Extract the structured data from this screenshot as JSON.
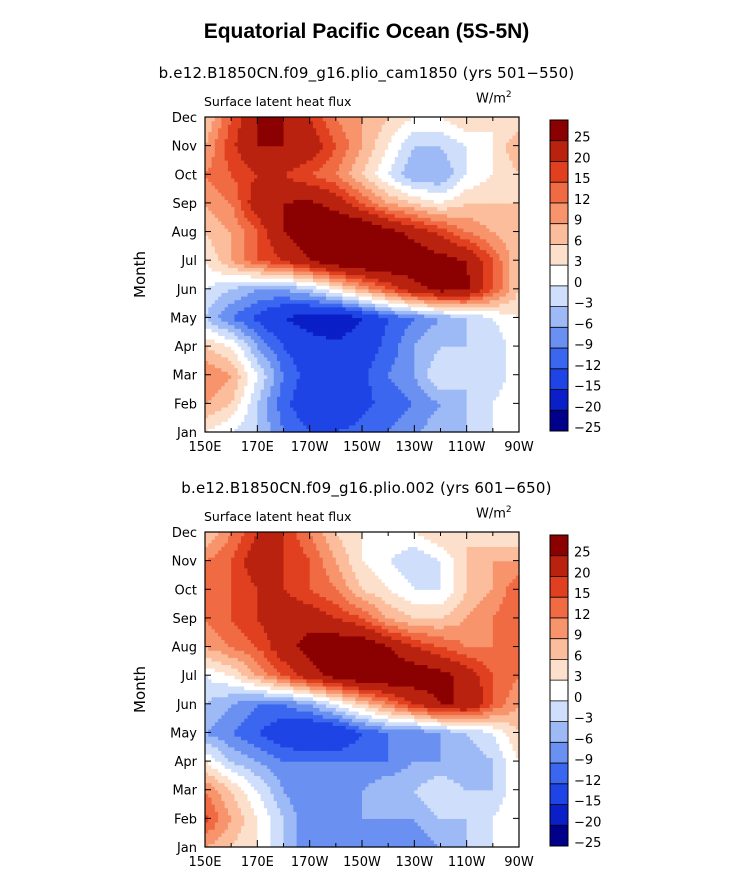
{
  "title": "Equatorial Pacific Ocean (5S-5N)",
  "panels": [
    {
      "subtitle": "b.e12.B1850CN.f09_g16.plio_cam1850 (yrs 501−550)",
      "left_label": "Surface latent heat flux",
      "units": "W/m",
      "units_sup": "2"
    },
    {
      "subtitle": "b.e12.B1850CN.f09_g16.plio.002 (yrs 601−650)",
      "left_label": "Surface latent heat flux",
      "units": "W/m",
      "units_sup": "2"
    }
  ],
  "colors": {
    "levels": [
      "#00008b",
      "#0a1fc8",
      "#1f44e6",
      "#3a66f0",
      "#6a90f2",
      "#9dbaf6",
      "#cfdefb",
      "#ffffff",
      "#fde0cc",
      "#fbbd9c",
      "#f7946c",
      "#f06a43",
      "#e0401f",
      "#b8220f",
      "#8b0000"
    ]
  },
  "chart_data": [
    {
      "type": "heatmap",
      "title": "",
      "xlabel": "",
      "ylabel": "Month",
      "x_ticks": [
        "150E",
        "170E",
        "170W",
        "150W",
        "130W",
        "110W",
        "90W"
      ],
      "y_ticks": [
        "Jan",
        "Feb",
        "Mar",
        "Apr",
        "May",
        "Jun",
        "Jul",
        "Aug",
        "Sep",
        "Oct",
        "Nov",
        "Dec"
      ],
      "colorbar_levels": [
        "25",
        "20",
        "15",
        "12",
        "9",
        "6",
        "3",
        "0",
        "−3",
        "−6",
        "−9",
        "−12",
        "−15",
        "−20",
        "−25"
      ],
      "grid": false,
      "x_nodes": [
        150,
        160,
        170,
        180,
        190,
        200,
        210,
        220,
        230,
        240,
        250,
        260,
        270
      ],
      "values": [
        [
          0,
          -3,
          -6,
          -12,
          -15,
          -15,
          -14,
          -12,
          -10,
          -6,
          -6,
          -3,
          0
        ],
        [
          6,
          3,
          -6,
          -14,
          -18,
          -18,
          -16,
          -14,
          -12,
          -9,
          -6,
          -3,
          0
        ],
        [
          9,
          6,
          -3,
          -12,
          -17,
          -18,
          -16,
          -12,
          -9,
          -3,
          -6,
          -6,
          0
        ],
        [
          3,
          0,
          -9,
          -15,
          -18,
          -19,
          -17,
          -14,
          -9,
          -6,
          -6,
          -6,
          0
        ],
        [
          -6,
          -12,
          -16,
          -20,
          -22,
          -24,
          -20,
          -15,
          -12,
          -9,
          -6,
          -3,
          0
        ],
        [
          -3,
          -6,
          -9,
          -9,
          -6,
          0,
          6,
          12,
          18,
          22,
          21,
          12,
          3
        ],
        [
          0,
          6,
          12,
          15,
          20,
          24,
          26,
          26,
          24,
          22,
          20,
          12,
          3
        ],
        [
          3,
          6,
          12,
          20,
          24,
          26,
          26,
          22,
          18,
          14,
          9,
          6,
          3
        ],
        [
          6,
          9,
          18,
          20,
          21,
          18,
          12,
          6,
          3,
          0,
          3,
          3,
          3
        ],
        [
          9,
          12,
          15,
          15,
          12,
          9,
          3,
          -3,
          -9,
          -9,
          -3,
          0,
          3
        ],
        [
          6,
          14,
          20,
          20,
          18,
          12,
          6,
          0,
          -6,
          -6,
          -3,
          0,
          6
        ],
        [
          3,
          12,
          20,
          20,
          15,
          9,
          6,
          3,
          0,
          0,
          3,
          0,
          0
        ]
      ]
    },
    {
      "type": "heatmap",
      "title": "",
      "xlabel": "",
      "ylabel": "Month",
      "x_ticks": [
        "150E",
        "170E",
        "170W",
        "150W",
        "130W",
        "110W",
        "90W"
      ],
      "y_ticks": [
        "Jan",
        "Feb",
        "Mar",
        "Apr",
        "May",
        "Jun",
        "Jul",
        "Aug",
        "Sep",
        "Oct",
        "Nov",
        "Dec"
      ],
      "colorbar_levels": [
        "25",
        "20",
        "15",
        "12",
        "9",
        "6",
        "3",
        "0",
        "−3",
        "−6",
        "−9",
        "−12",
        "−15",
        "−20",
        "−25"
      ],
      "grid": false,
      "x_nodes": [
        150,
        160,
        170,
        180,
        190,
        200,
        210,
        220,
        230,
        240,
        250,
        260,
        270
      ],
      "values": [
        [
          6,
          3,
          0,
          -6,
          -12,
          -12,
          -12,
          -12,
          -12,
          -9,
          -6,
          -3,
          0
        ],
        [
          13,
          6,
          0,
          -6,
          -12,
          -12,
          -9,
          -9,
          -9,
          -6,
          -6,
          -3,
          0
        ],
        [
          9,
          3,
          -3,
          -9,
          -12,
          -12,
          -9,
          -6,
          -6,
          -3,
          -6,
          -6,
          0
        ],
        [
          0,
          -6,
          -9,
          -12,
          -12,
          -12,
          -12,
          -12,
          -9,
          -9,
          -9,
          -6,
          0
        ],
        [
          -9,
          -12,
          -15,
          -18,
          -20,
          -20,
          -15,
          -12,
          -12,
          -9,
          -6,
          -3,
          3
        ],
        [
          -6,
          -9,
          -12,
          -12,
          -9,
          -3,
          3,
          9,
          15,
          20,
          20,
          12,
          6
        ],
        [
          -3,
          0,
          6,
          12,
          18,
          22,
          25,
          25,
          24,
          22,
          18,
          12,
          9
        ],
        [
          6,
          9,
          12,
          18,
          22,
          24,
          25,
          20,
          15,
          12,
          9,
          9,
          9
        ],
        [
          9,
          12,
          15,
          18,
          18,
          15,
          12,
          6,
          3,
          3,
          6,
          9,
          12
        ],
        [
          12,
          12,
          15,
          15,
          12,
          9,
          3,
          0,
          -3,
          -3,
          3,
          6,
          12
        ],
        [
          9,
          12,
          18,
          15,
          12,
          6,
          0,
          -3,
          -6,
          -3,
          3,
          6,
          6
        ],
        [
          3,
          9,
          15,
          15,
          9,
          3,
          0,
          0,
          0,
          3,
          3,
          0,
          0
        ]
      ]
    }
  ]
}
